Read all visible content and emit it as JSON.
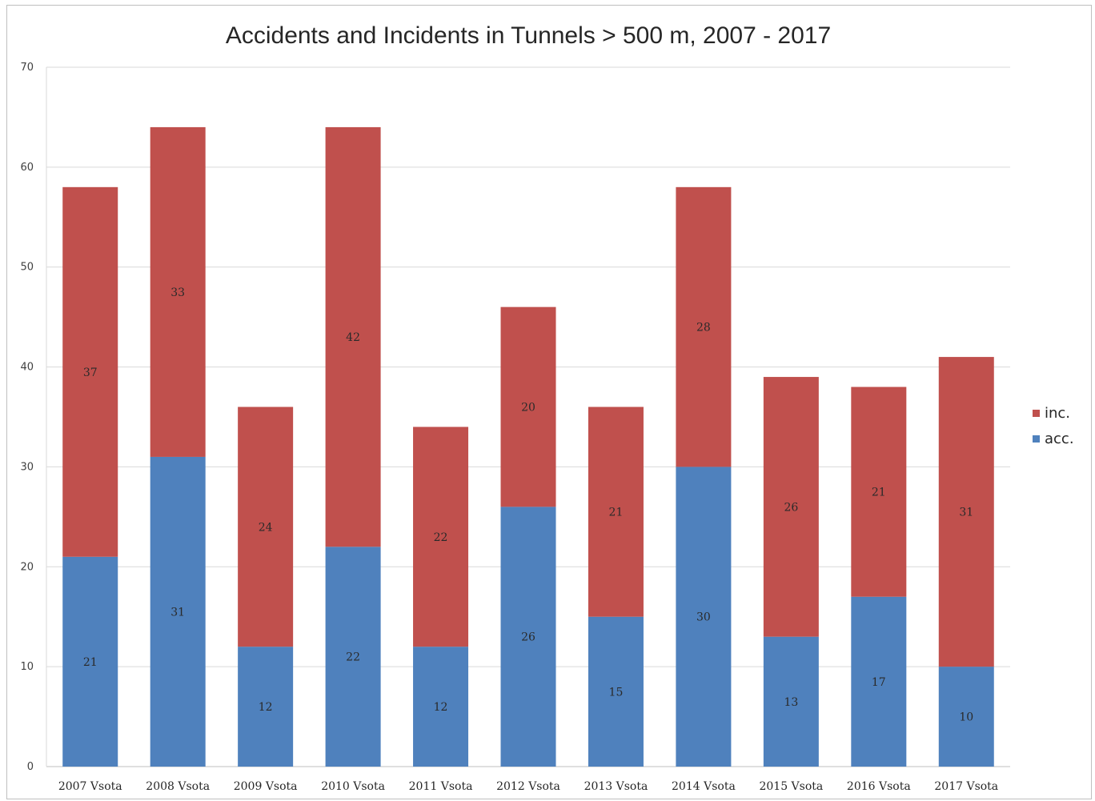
{
  "chart_data": {
    "type": "bar",
    "stacked": true,
    "title": "Accidents and Incidents in Tunnels > 500 m,  2007 - 2017",
    "categories": [
      "2007 Vsota",
      "2008 Vsota",
      "2009 Vsota",
      "2010 Vsota",
      "2011 Vsota",
      "2012 Vsota",
      "2013 Vsota",
      "2014 Vsota",
      "2015 Vsota",
      "2016 Vsota",
      "2017 Vsota"
    ],
    "series": [
      {
        "name": "acc.",
        "color": "#4f81bd",
        "values": [
          21,
          31,
          12,
          22,
          12,
          26,
          15,
          30,
          13,
          17,
          10
        ]
      },
      {
        "name": "inc.",
        "color": "#c0504d",
        "values": [
          37,
          33,
          24,
          42,
          22,
          20,
          21,
          28,
          26,
          21,
          31
        ]
      }
    ],
    "legend": [
      {
        "label": "inc.",
        "color": "#c0504d"
      },
      {
        "label": "acc.",
        "color": "#4f81bd"
      }
    ],
    "legend_position": "right",
    "ylim": [
      0,
      70
    ],
    "yticks": [
      0,
      10,
      20,
      30,
      40,
      50,
      60,
      70
    ],
    "grid": true
  }
}
